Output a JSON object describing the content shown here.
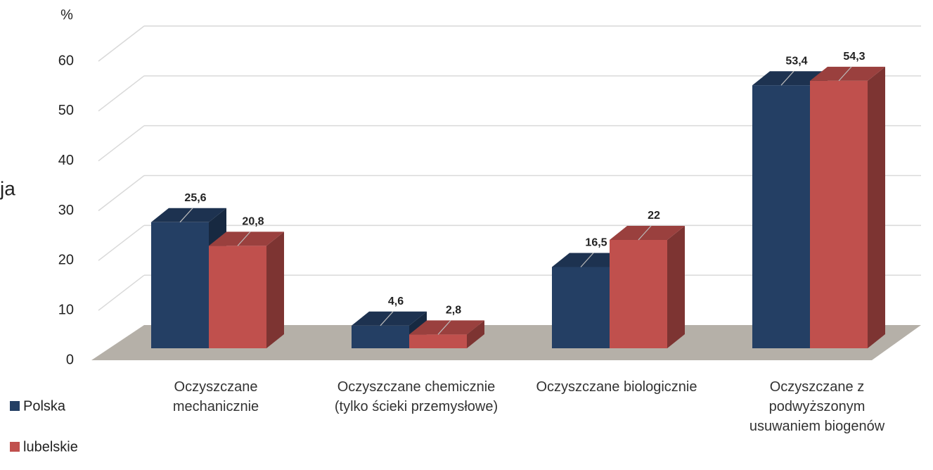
{
  "chart_data": {
    "type": "bar3d",
    "y_axis_label": "%",
    "annotation": "ja",
    "categories": [
      "Oczyszczane mechanicznie",
      "Oczyszczane chemicznie (tylko ścieki przemysłowe)",
      "Oczyszczane biologicznie",
      "Oczyszczane z podwyższonym usuwaniem biogenów"
    ],
    "series": [
      {
        "name": "Polska",
        "color": "#243f64",
        "values": [
          25.6,
          4.6,
          16.5,
          53.4
        ],
        "value_labels": [
          "25,6",
          "4,6",
          "16,5",
          "53,4"
        ]
      },
      {
        "name": "lubelskie",
        "color": "#c0504d",
        "values": [
          20.8,
          2.8,
          22,
          54.3
        ],
        "value_labels": [
          "20,8",
          "2,8",
          "22",
          "54,3"
        ]
      }
    ],
    "ylim": [
      0,
      60
    ],
    "yticks": [
      0,
      10,
      20,
      30,
      40,
      50,
      60
    ],
    "grid": true,
    "legend": "bottom-left"
  }
}
